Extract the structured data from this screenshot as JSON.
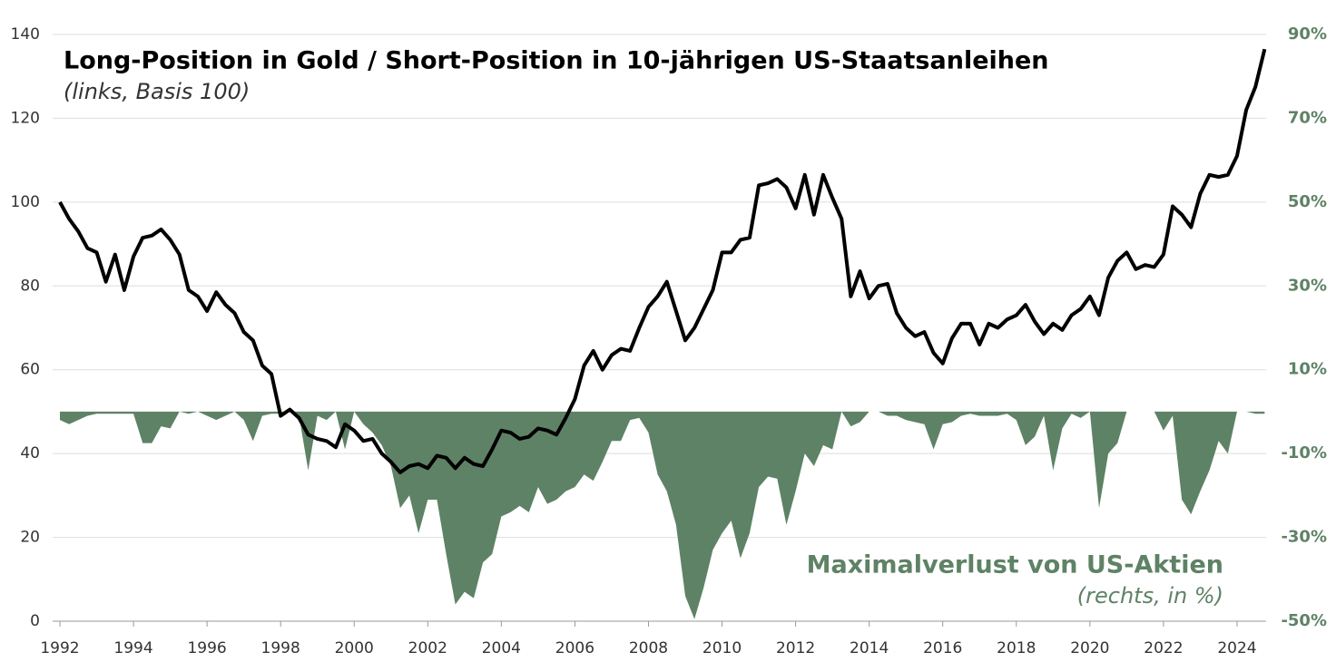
{
  "chart_data": {
    "type": "line-area",
    "x": [
      1992,
      1992.25,
      1992.5,
      1992.75,
      1993,
      1993.25,
      1993.5,
      1993.75,
      1994,
      1994.25,
      1994.5,
      1994.75,
      1995,
      1995.25,
      1995.5,
      1995.75,
      1996,
      1996.25,
      1996.5,
      1996.75,
      1997,
      1997.25,
      1997.5,
      1997.75,
      1998,
      1998.25,
      1998.5,
      1998.75,
      1999,
      1999.25,
      1999.5,
      1999.75,
      2000,
      2000.25,
      2000.5,
      2000.75,
      2001,
      2001.25,
      2001.5,
      2001.75,
      2002,
      2002.25,
      2002.5,
      2002.75,
      2003,
      2003.25,
      2003.5,
      2003.75,
      2004,
      2004.25,
      2004.5,
      2004.75,
      2005,
      2005.25,
      2005.5,
      2005.75,
      2006,
      2006.25,
      2006.5,
      2006.75,
      2007,
      2007.25,
      2007.5,
      2007.75,
      2008,
      2008.25,
      2008.5,
      2008.75,
      2009,
      2009.25,
      2009.5,
      2009.75,
      2010,
      2010.25,
      2010.5,
      2010.75,
      2011,
      2011.25,
      2011.5,
      2011.75,
      2012,
      2012.25,
      2012.5,
      2012.75,
      2013,
      2013.25,
      2013.5,
      2013.75,
      2014,
      2014.25,
      2014.5,
      2014.75,
      2015,
      2015.25,
      2015.5,
      2015.75,
      2016,
      2016.25,
      2016.5,
      2016.75,
      2017,
      2017.25,
      2017.5,
      2017.75,
      2018,
      2018.25,
      2018.5,
      2018.75,
      2019,
      2019.25,
      2019.5,
      2019.75,
      2020,
      2020.25,
      2020.5,
      2020.75,
      2021,
      2021.25,
      2021.5,
      2021.75,
      2022,
      2022.25,
      2022.5,
      2022.75,
      2023,
      2023.25,
      2023.5,
      2023.75,
      2024,
      2024.25,
      2024.5,
      2024.75
    ],
    "series": [
      {
        "name": "Long-Position in Gold / Short-Position in 10-jährigen US-Staatsanleihen",
        "note": "(links, Basis 100)",
        "color": "#000000",
        "values": [
          100,
          96,
          93,
          89,
          88,
          81,
          87.5,
          79,
          87,
          91.5,
          92,
          93.5,
          91,
          87.5,
          79,
          77.5,
          74,
          78.5,
          75.5,
          73.5,
          69,
          67,
          61,
          59,
          49,
          50.5,
          48.5,
          44.5,
          43.5,
          43,
          41.5,
          47,
          45.5,
          43,
          43.5,
          40,
          38,
          35.5,
          37,
          37.5,
          36.5,
          39.5,
          39,
          36.5,
          39,
          37.5,
          37,
          41,
          45.5,
          45,
          43.5,
          44,
          46,
          45.5,
          44.5,
          48.5,
          53,
          61,
          64.5,
          60,
          63.5,
          65,
          64.5,
          70,
          75,
          77.5,
          81,
          74,
          67,
          70,
          74.5,
          79,
          88,
          88,
          91,
          91.5,
          104,
          104.5,
          105.5,
          103.5,
          98.5,
          106.5,
          97,
          106.5,
          101,
          96,
          77.5,
          83.5,
          77,
          80,
          80.5,
          73.5,
          70,
          68,
          69,
          64,
          61.5,
          67.5,
          71,
          71,
          66,
          71,
          70,
          72,
          73,
          75.5,
          71.5,
          68.5,
          71,
          69.5,
          73,
          74.5,
          77.5,
          73,
          82,
          86,
          88,
          84,
          85,
          84.5,
          87.5,
          99,
          97,
          94,
          102,
          106.5,
          106,
          106.5,
          111,
          122,
          127.5,
          136.5
        ]
      },
      {
        "name": "Maximalverlust von US-Aktien",
        "note": "(rechts, in %)",
        "color": "#5e8265",
        "axis": "y2",
        "values": [
          -2,
          -3,
          -2,
          -1,
          -0.5,
          -0.5,
          -0.5,
          -0.5,
          -0.5,
          -7.5,
          -7.5,
          -3.5,
          -4,
          0,
          -0.5,
          0,
          -1,
          -2,
          -1,
          0,
          -2,
          -7,
          -1,
          -0.5,
          -0.5,
          0,
          -1,
          -14,
          -1,
          -2,
          0,
          -9,
          0,
          -3,
          -5,
          -8,
          -13,
          -23,
          -20,
          -29,
          -21,
          -21,
          -34,
          -46,
          -43,
          -44.5,
          -36,
          -34,
          -25,
          -24,
          -22.5,
          -24,
          -18,
          -22,
          -21,
          -19,
          -18,
          -15,
          -16.5,
          -12,
          -7,
          -7,
          -2,
          -1.5,
          -5,
          -15,
          -19,
          -27,
          -44,
          -49.5,
          -42,
          -33,
          -29,
          -26,
          -35,
          -29,
          -18,
          -15.5,
          -16,
          -27,
          -19,
          -10,
          -13,
          -8,
          -9,
          0,
          -3.5,
          -2.5,
          0,
          0,
          -1,
          -1,
          -2,
          -2.5,
          -3,
          -9,
          -3,
          -2.5,
          -1,
          -0.5,
          -1,
          -1,
          -1,
          -0.5,
          -2,
          -8,
          -6,
          -1,
          -14,
          -4,
          -0.5,
          -1.5,
          0,
          -23,
          -10,
          -7.5,
          0,
          0,
          0,
          0,
          -4.5,
          -1,
          -21,
          -24.5,
          -19,
          -14,
          -7,
          -10,
          0,
          0,
          -0.5,
          -0.5
        ]
      }
    ],
    "xlim": [
      1992,
      2024.9
    ],
    "xticks": [
      1992,
      1994,
      1996,
      1998,
      2000,
      2002,
      2004,
      2006,
      2008,
      2010,
      2012,
      2014,
      2016,
      2018,
      2020,
      2022,
      2024
    ],
    "ylim": [
      0,
      140
    ],
    "yticks": [
      0,
      20,
      40,
      60,
      80,
      100,
      120,
      140
    ],
    "y2lim": [
      -50,
      90
    ],
    "y2ticks": [
      {
        "value": -50,
        "label": "-50%"
      },
      {
        "value": -30,
        "label": "-30%"
      },
      {
        "value": -10,
        "label": "-10%"
      },
      {
        "value": 10,
        "label": "10%"
      },
      {
        "value": 30,
        "label": "30%"
      },
      {
        "value": 50,
        "label": "50%"
      },
      {
        "value": 70,
        "label": "70%"
      },
      {
        "value": 90,
        "label": "90%"
      }
    ],
    "grid": true
  }
}
